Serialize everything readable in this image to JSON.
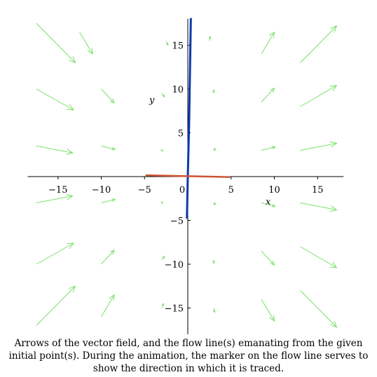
{
  "chart_data": {
    "type": "vector-field-flow",
    "xlabel": "x",
    "ylabel": "y",
    "xlim": [
      -18.5,
      18
    ],
    "ylim": [
      -18,
      18
    ],
    "x_ticks": [
      -15,
      -10,
      -5,
      0,
      5,
      10,
      15
    ],
    "x_tick_labels": [
      "−15",
      "−10",
      "−5",
      "0",
      "5",
      "10",
      "15"
    ],
    "y_ticks": [
      -15,
      -10,
      -5,
      5,
      10,
      15
    ],
    "y_tick_labels": [
      "−15",
      "−10",
      "−5",
      "5",
      "10",
      "15"
    ],
    "grid": false,
    "vector_field": {
      "color": "#7be06b",
      "arrows": [
        {
          "x": -17.5,
          "y": 17.5,
          "dx": 4.5,
          "dy": -4.5
        },
        {
          "x": -12.5,
          "y": 16.5,
          "dx": 1.5,
          "dy": -2.5
        },
        {
          "x": -2.5,
          "y": 15.5,
          "dx": 0.2,
          "dy": -0.5
        },
        {
          "x": 2.5,
          "y": 15.5,
          "dx": 0.1,
          "dy": 0.5
        },
        {
          "x": 8.5,
          "y": 14.0,
          "dx": 1.5,
          "dy": 2.5
        },
        {
          "x": 13.0,
          "y": 13.0,
          "dx": 4.2,
          "dy": 4.2
        },
        {
          "x": -17.5,
          "y": 10.0,
          "dx": 4.3,
          "dy": -2.4
        },
        {
          "x": -10.0,
          "y": 10.0,
          "dx": 1.5,
          "dy": -1.6
        },
        {
          "x": -3.0,
          "y": 9.5,
          "dx": 0.3,
          "dy": -0.4
        },
        {
          "x": 3.0,
          "y": 9.5,
          "dx": 0.0,
          "dy": 0.4
        },
        {
          "x": 8.5,
          "y": 8.5,
          "dx": 1.5,
          "dy": 1.6
        },
        {
          "x": 13.0,
          "y": 8.0,
          "dx": 4.2,
          "dy": 2.4
        },
        {
          "x": -17.5,
          "y": 3.5,
          "dx": 4.2,
          "dy": -0.8
        },
        {
          "x": -10.0,
          "y": 3.5,
          "dx": 1.6,
          "dy": -0.4
        },
        {
          "x": -3.0,
          "y": 3.0,
          "dx": 0.1,
          "dy": -0.1
        },
        {
          "x": 3.0,
          "y": 3.0,
          "dx": 0.2,
          "dy": 0.2
        },
        {
          "x": 8.5,
          "y": 3.0,
          "dx": 1.6,
          "dy": 0.4
        },
        {
          "x": 13.0,
          "y": 3.0,
          "dx": 4.2,
          "dy": 0.8
        },
        {
          "x": -17.5,
          "y": -3.0,
          "dx": 4.2,
          "dy": 0.8
        },
        {
          "x": -10.0,
          "y": -3.0,
          "dx": 1.6,
          "dy": 0.4
        },
        {
          "x": -3.0,
          "y": -3.0,
          "dx": 0.1,
          "dy": 0.1
        },
        {
          "x": 3.0,
          "y": -3.0,
          "dx": 0.2,
          "dy": -0.2
        },
        {
          "x": 8.5,
          "y": -3.0,
          "dx": 1.6,
          "dy": -0.4
        },
        {
          "x": 13.0,
          "y": -3.0,
          "dx": 4.2,
          "dy": -0.8
        },
        {
          "x": -17.5,
          "y": -10.0,
          "dx": 4.3,
          "dy": 2.4
        },
        {
          "x": -10.0,
          "y": -10.0,
          "dx": 1.5,
          "dy": 1.6
        },
        {
          "x": -3.0,
          "y": -9.5,
          "dx": 0.3,
          "dy": 0.4
        },
        {
          "x": 3.0,
          "y": -9.5,
          "dx": 0.0,
          "dy": -0.4
        },
        {
          "x": 8.5,
          "y": -8.5,
          "dx": 1.5,
          "dy": -1.6
        },
        {
          "x": 13.0,
          "y": -8.0,
          "dx": 4.2,
          "dy": -2.4
        },
        {
          "x": -17.5,
          "y": -17.0,
          "dx": 4.5,
          "dy": 4.5
        },
        {
          "x": -10.0,
          "y": -16.0,
          "dx": 1.5,
          "dy": 2.5
        },
        {
          "x": -3.0,
          "y": -15.0,
          "dx": 0.2,
          "dy": 0.5
        },
        {
          "x": 3.0,
          "y": -15.0,
          "dx": 0.1,
          "dy": -0.5
        },
        {
          "x": 8.5,
          "y": -14.0,
          "dx": 1.5,
          "dy": -2.5
        },
        {
          "x": 13.0,
          "y": -13.0,
          "dx": 4.2,
          "dy": -4.2
        }
      ]
    },
    "flow_lines": [
      {
        "color": "#0b3aa8",
        "points": [
          [
            -0.1,
            -4.7
          ],
          [
            0.0,
            0.0
          ],
          [
            0.15,
            6.0
          ],
          [
            0.35,
            18.0
          ]
        ]
      },
      {
        "color": "#cc5533",
        "points": [
          [
            -4.8,
            0.15
          ],
          [
            0.0,
            0.05
          ],
          [
            4.8,
            -0.05
          ]
        ]
      }
    ],
    "caption": "Arrows of the vector field, and the flow line(s) emanating from the given initial point(s).  During the animation, the marker on the flow line serves to show the direction in which it is traced."
  }
}
